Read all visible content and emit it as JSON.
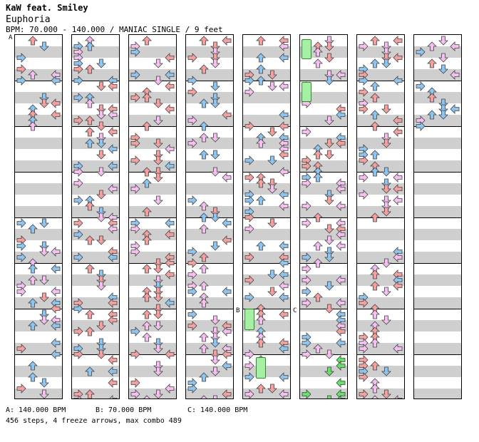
{
  "header": {
    "artist": "KaW feat. Smiley",
    "title": "Euphoria",
    "bpm_line": "BPM: 70.000 - 140.000 / MANIAC SINGLE / 9 feet"
  },
  "markers": [
    "A",
    "B",
    "C"
  ],
  "legend": {
    "a": "A: 140.000 BPM",
    "b": "B: 70.000 BPM",
    "c": "C: 140.000 BPM"
  },
  "summary": "456 steps, 4 freeze arrows, max combo 489",
  "colors": {
    "red": "#f5a0a0",
    "blue": "#8ec4f0",
    "pink": "#f5c0f0",
    "green": "#66e066",
    "band": "#cfcfcf"
  },
  "chart_columns": 8,
  "measures_per_column": 8,
  "last_column_measures": 2
}
